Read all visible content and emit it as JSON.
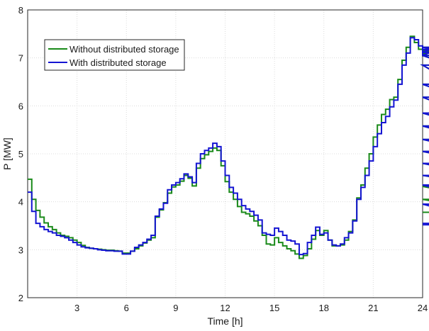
{
  "chart_data": {
    "type": "line",
    "title": "",
    "xlabel": "Time [h]",
    "ylabel": "P [MW]",
    "xlim": [
      0,
      24
    ],
    "ylim": [
      2,
      8
    ],
    "xticks": [
      3,
      6,
      9,
      12,
      15,
      18,
      21,
      24
    ],
    "yticks": [
      2,
      3,
      4,
      5,
      6,
      7,
      8
    ],
    "grid": true,
    "legend_position": "top-left",
    "step": 0.25,
    "series": [
      {
        "name": "Without distributed storage",
        "color": "#1a8a1a",
        "values": [
          4.47,
          4.05,
          3.82,
          3.68,
          3.56,
          3.48,
          3.42,
          3.35,
          3.3,
          3.28,
          3.25,
          3.2,
          3.15,
          3.09,
          3.05,
          3.03,
          3.02,
          3.01,
          3.0,
          2.99,
          2.99,
          2.98,
          2.97,
          2.93,
          2.93,
          2.97,
          3.02,
          3.08,
          3.14,
          3.2,
          3.25,
          3.68,
          3.83,
          3.98,
          4.18,
          4.31,
          4.35,
          4.43,
          4.55,
          4.49,
          4.33,
          4.7,
          4.9,
          4.98,
          5.05,
          5.12,
          5.07,
          4.75,
          4.42,
          4.2,
          4.05,
          3.9,
          3.78,
          3.75,
          3.7,
          3.6,
          3.5,
          3.3,
          3.12,
          3.1,
          3.25,
          3.15,
          3.08,
          3.02,
          2.98,
          2.91,
          2.82,
          2.88,
          3.02,
          3.22,
          3.4,
          3.3,
          3.4,
          3.2,
          3.08,
          3.08,
          3.1,
          3.2,
          3.38,
          3.62,
          4.08,
          4.35,
          4.7,
          5.0,
          5.35,
          5.6,
          5.82,
          5.93,
          6.13,
          6.18,
          6.55,
          6.95,
          7.22,
          7.45,
          7.32,
          7.18,
          7.05,
          7.08,
          7.15,
          7.22,
          7.18,
          7.12,
          7.05,
          6.85,
          6.45,
          6.18,
          5.85,
          5.58,
          5.3,
          5.05,
          4.8,
          4.55,
          4.32,
          4.05,
          3.78,
          3.78
        ]
      },
      {
        "name": "With distributed storage",
        "color": "#1414d2",
        "values": [
          4.2,
          3.8,
          3.55,
          3.48,
          3.42,
          3.38,
          3.35,
          3.3,
          3.28,
          3.25,
          3.2,
          3.15,
          3.1,
          3.06,
          3.04,
          3.03,
          3.02,
          3.0,
          2.99,
          2.98,
          2.98,
          2.97,
          2.97,
          2.91,
          2.91,
          2.97,
          3.05,
          3.1,
          3.15,
          3.22,
          3.3,
          3.7,
          3.85,
          3.97,
          4.25,
          4.35,
          4.4,
          4.48,
          4.58,
          4.52,
          4.4,
          4.8,
          5.0,
          5.07,
          5.12,
          5.22,
          5.15,
          4.85,
          4.55,
          4.3,
          4.18,
          4.05,
          3.92,
          3.85,
          3.8,
          3.72,
          3.62,
          3.35,
          3.32,
          3.3,
          3.45,
          3.38,
          3.3,
          3.2,
          3.18,
          3.12,
          2.9,
          2.92,
          3.15,
          3.3,
          3.47,
          3.32,
          3.35,
          3.2,
          3.1,
          3.08,
          3.12,
          3.25,
          3.35,
          3.6,
          4.05,
          4.3,
          4.55,
          4.85,
          5.15,
          5.42,
          5.65,
          5.78,
          5.98,
          6.12,
          6.45,
          6.85,
          7.1,
          7.42,
          7.38,
          7.25,
          7.05,
          7.05,
          7.12,
          7.22,
          7.18,
          7.12,
          7.05,
          6.85,
          6.45,
          6.18,
          5.85,
          5.58,
          5.3,
          5.05,
          4.8,
          4.55,
          4.35,
          3.95,
          3.55,
          3.52
        ]
      }
    ]
  }
}
